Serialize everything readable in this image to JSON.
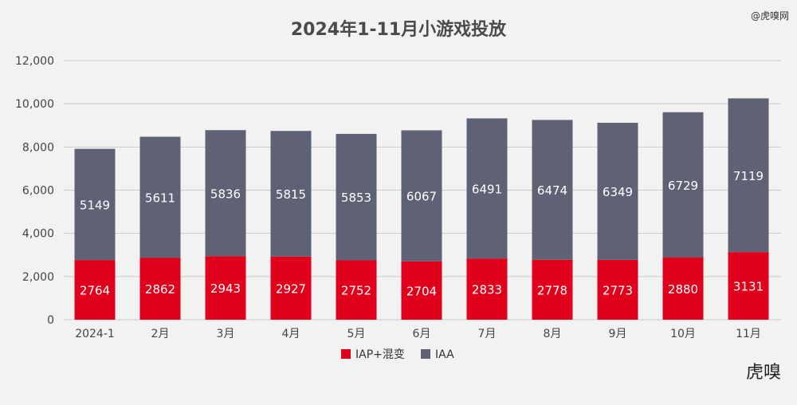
{
  "watermark": "@虎嗅网",
  "logo": "虎嗅",
  "colors": {
    "iap": "#e0001b",
    "iaa": "#5f6175",
    "background": "#f2f2f2"
  },
  "chart_data": {
    "type": "bar",
    "stacked": true,
    "title": "2024年1-11月小游戏投放",
    "xlabel": "",
    "ylabel": "",
    "categories": [
      "2024-1",
      "2月",
      "3月",
      "4月",
      "5月",
      "6月",
      "7月",
      "8月",
      "9月",
      "10月",
      "11月"
    ],
    "series": [
      {
        "name": "IAP+混变",
        "values": [
          2764,
          2862,
          2943,
          2927,
          2752,
          2704,
          2833,
          2778,
          2773,
          2880,
          3131
        ]
      },
      {
        "name": "IAA",
        "values": [
          5149,
          5611,
          5836,
          5815,
          5853,
          6067,
          6491,
          6474,
          6349,
          6729,
          7119
        ]
      }
    ],
    "ylim": [
      0,
      12000
    ],
    "yticks": [
      0,
      2000,
      4000,
      6000,
      8000,
      10000,
      12000
    ],
    "ytick_labels": [
      "0",
      "2,000",
      "4,000",
      "6,000",
      "8,000",
      "10,000",
      "12,000"
    ],
    "grid": true,
    "legend_position": "bottom-center"
  }
}
